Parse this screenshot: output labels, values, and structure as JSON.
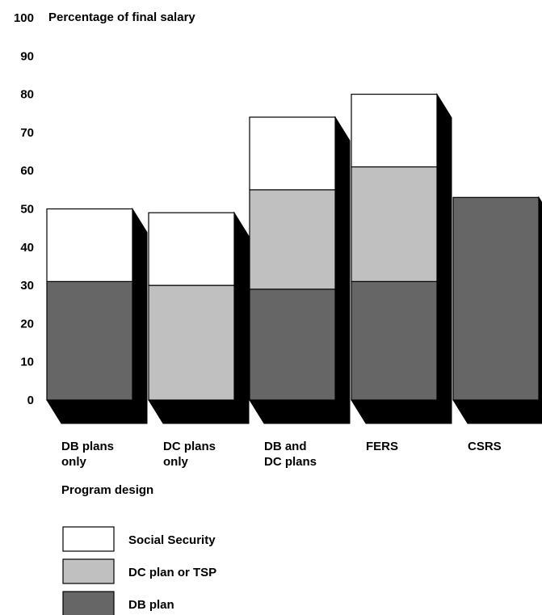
{
  "chart_data": {
    "type": "bar",
    "stacked": true,
    "ylabel": "Percentage of final salary",
    "xlabel": "Program design",
    "ylim": [
      0,
      100
    ],
    "yticks": [
      "0",
      "10",
      "20",
      "30",
      "40",
      "50",
      "60",
      "70",
      "80",
      "90",
      "100"
    ],
    "categories": [
      [
        "DB plans",
        "only"
      ],
      [
        "DC plans",
        "only"
      ],
      [
        "DB and",
        "DC plans"
      ],
      [
        "FERS"
      ],
      [
        "CSRS"
      ]
    ],
    "series": [
      {
        "name": "DB plan",
        "color": "#666666",
        "values": [
          31,
          0,
          29,
          31,
          53
        ]
      },
      {
        "name": "DC plan or TSP",
        "color": "#c0c0c0",
        "values": [
          0,
          30,
          26,
          30,
          0
        ]
      },
      {
        "name": "Social Security",
        "color": "#ffffff",
        "values": [
          19,
          19,
          19,
          19,
          0
        ]
      }
    ],
    "legend_order": [
      "Social Security",
      "DC plan or TSP",
      "DB plan"
    ],
    "legend_position": "bottom-left"
  }
}
